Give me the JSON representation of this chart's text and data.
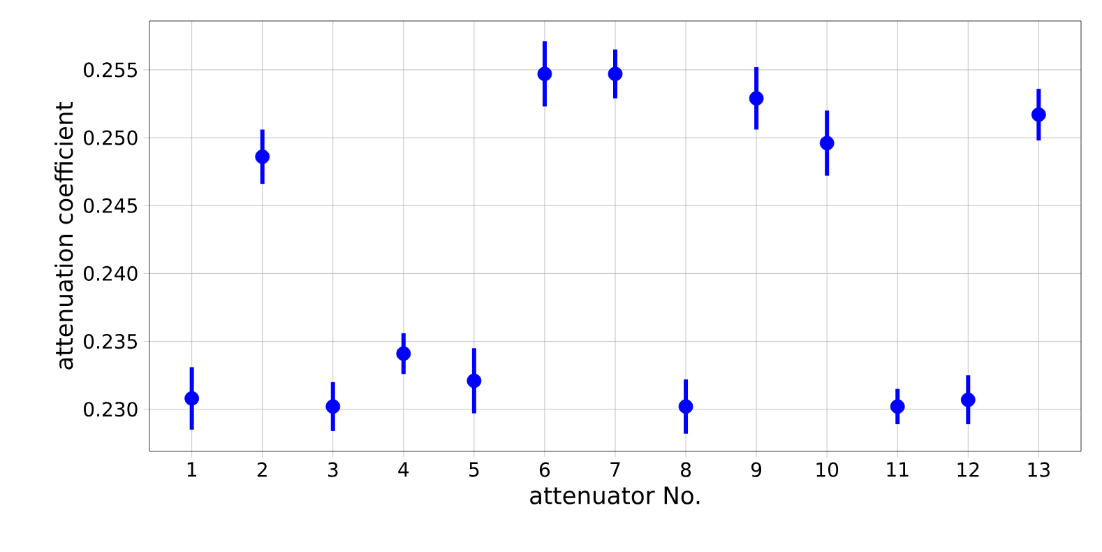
{
  "chart_data": {
    "type": "scatter",
    "xlabel": "attenuator No.",
    "ylabel": "attenuation coefficient",
    "x": [
      1,
      2,
      3,
      4,
      5,
      6,
      7,
      8,
      9,
      10,
      11,
      12,
      13
    ],
    "values": [
      0.2308,
      0.2486,
      0.2302,
      0.2341,
      0.2321,
      0.2547,
      0.2547,
      0.2302,
      0.2529,
      0.2496,
      0.2302,
      0.2307,
      0.2517
    ],
    "errors": [
      0.0023,
      0.002,
      0.0018,
      0.0015,
      0.0024,
      0.0024,
      0.0018,
      0.002,
      0.0023,
      0.0024,
      0.0013,
      0.0018,
      0.0019
    ],
    "color": "#0000ff",
    "marker": "circle",
    "grid": true,
    "xlim": [
      0.4,
      13.6
    ],
    "xticks": [
      1,
      2,
      3,
      4,
      5,
      6,
      7,
      8,
      9,
      10,
      11,
      12,
      13
    ],
    "ylim": [
      0.2269,
      0.2586
    ],
    "yticks": [
      {
        "value": 0.23,
        "label": "0.230"
      },
      0.235,
      {
        "value": 0.24,
        "label": "0.240"
      },
      0.245,
      {
        "value": 0.25,
        "label": "0.250"
      },
      0.255
    ]
  }
}
